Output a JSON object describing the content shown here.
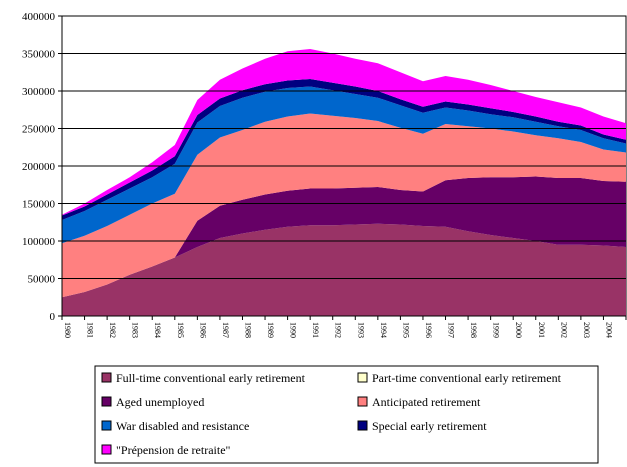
{
  "chart_data": {
    "type": "stacked_area",
    "categories": [
      "1980",
      "1981",
      "1982",
      "1983",
      "1984",
      "1985",
      "1986",
      "1987",
      "1988",
      "1989",
      "1990",
      "1991",
      "1992",
      "1993",
      "1994",
      "1995",
      "1996",
      "1997",
      "1998",
      "1999",
      "2000",
      "2001",
      "2002",
      "2003",
      "2004",
      "2005"
    ],
    "series": [
      {
        "name": "Full-time conventional early retirement",
        "color": "#993366",
        "values": [
          25000,
          32000,
          42000,
          55000,
          66000,
          78000,
          92000,
          104000,
          110000,
          115000,
          119000,
          121000,
          121000,
          122000,
          123000,
          122000,
          120000,
          119000,
          113000,
          108000,
          104000,
          100000,
          95000,
          95000,
          94000,
          92000
        ]
      },
      {
        "name": "Part-time conventional early retirement",
        "color": "#ffffcc",
        "values": [
          0,
          0,
          0,
          0,
          0,
          0,
          0,
          0,
          0,
          0,
          0,
          0,
          0,
          0,
          0,
          0,
          0,
          0,
          0,
          0,
          0,
          0,
          0,
          0,
          0,
          0
        ]
      },
      {
        "name": "Aged unemployed",
        "color": "#660066",
        "values": [
          0,
          0,
          0,
          0,
          0,
          0,
          35000,
          43000,
          45000,
          47000,
          48000,
          49000,
          49000,
          49000,
          49000,
          46000,
          46000,
          62000,
          71000,
          77000,
          81000,
          86000,
          89000,
          89000,
          86000,
          87000
        ]
      },
      {
        "name": "Anticipated retirement",
        "color": "#ff8080",
        "values": [
          72000,
          75000,
          78000,
          80000,
          84000,
          85000,
          88000,
          91000,
          93000,
          97000,
          99000,
          100000,
          97000,
          93000,
          88000,
          83000,
          77000,
          75000,
          69000,
          65000,
          61000,
          55000,
          53000,
          48000,
          42000,
          39000
        ]
      },
      {
        "name": "War disabled and resistance",
        "color": "#0066cc",
        "values": [
          31000,
          33000,
          35000,
          35000,
          35000,
          40000,
          43000,
          42000,
          43000,
          40000,
          38000,
          36000,
          34000,
          32000,
          31000,
          30000,
          28000,
          22000,
          21000,
          19000,
          19000,
          18000,
          16000,
          16000,
          15000,
          12000
        ]
      },
      {
        "name": "Special early retirement",
        "color": "#000080",
        "values": [
          6000,
          6000,
          7000,
          8000,
          9000,
          10000,
          10000,
          10000,
          10000,
          10000,
          10000,
          10000,
          10000,
          10000,
          9000,
          8000,
          8000,
          8000,
          8000,
          8000,
          7000,
          7000,
          6000,
          6000,
          5000,
          5000
        ]
      },
      {
        "name": "\"Prépension de retraite\"",
        "color": "#ff00ff",
        "values": [
          1000,
          4000,
          6000,
          7000,
          11000,
          15000,
          20000,
          25000,
          29000,
          34000,
          39000,
          40000,
          39000,
          37000,
          37000,
          36000,
          34000,
          34000,
          33000,
          31000,
          28000,
          26000,
          26000,
          24000,
          24000,
          22000
        ]
      }
    ],
    "ylim": [
      0,
      400000
    ],
    "yticks": [
      0,
      50000,
      100000,
      150000,
      200000,
      250000,
      300000,
      350000,
      400000
    ],
    "grid": true
  }
}
